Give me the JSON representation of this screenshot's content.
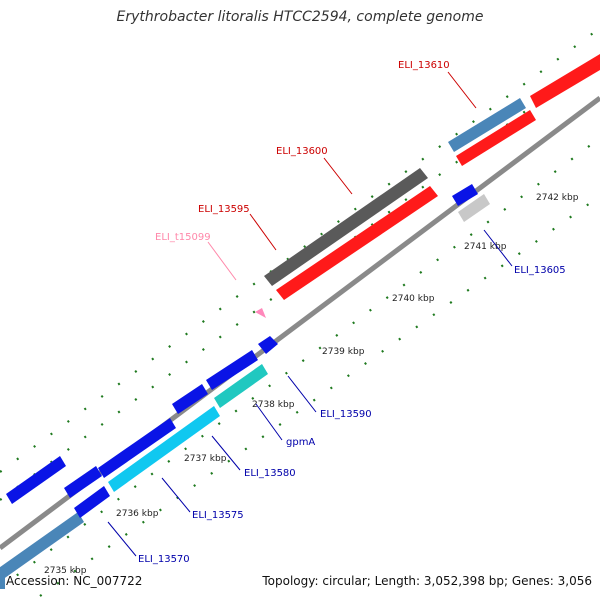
{
  "title": "Erythrobacter litoralis HTCC2594, complete genome",
  "footer": {
    "accession": "Accession: NC_007722",
    "topology": "Topology: circular; Length: 3,052,398 bp; Genes: 3,056"
  },
  "colors": {
    "backbone": "#8a8a8a",
    "tick": "#1f7a1f",
    "label_red": "#cc0000",
    "label_blue": "#0000aa",
    "label_pink": "#ff88aa",
    "gene_red": "#ff1a1a",
    "gene_blue": "#0a14e6",
    "gene_steel": "#4a86b8",
    "gene_dark_gray": "#5a5a5a",
    "gene_light_gray": "#c8c8c8",
    "gene_cyan": "#10c8f0",
    "gene_teal": "#20c8c0",
    "gene_pink": "#ff88bb"
  },
  "kbp_labels": [
    "2735 kbp",
    "2736 kbp",
    "2737 kbp",
    "2738 kbp",
    "2739 kbp",
    "2740 kbp",
    "2741 kbp",
    "2742 kbp"
  ],
  "gene_labels": [
    "ELI_13610",
    "ELI_13600",
    "ELI_13595",
    "ELI_t15099",
    "ELI_13605",
    "ELI_13590",
    "gpmA",
    "ELI_13580",
    "ELI_13575",
    "ELI_13570"
  ]
}
